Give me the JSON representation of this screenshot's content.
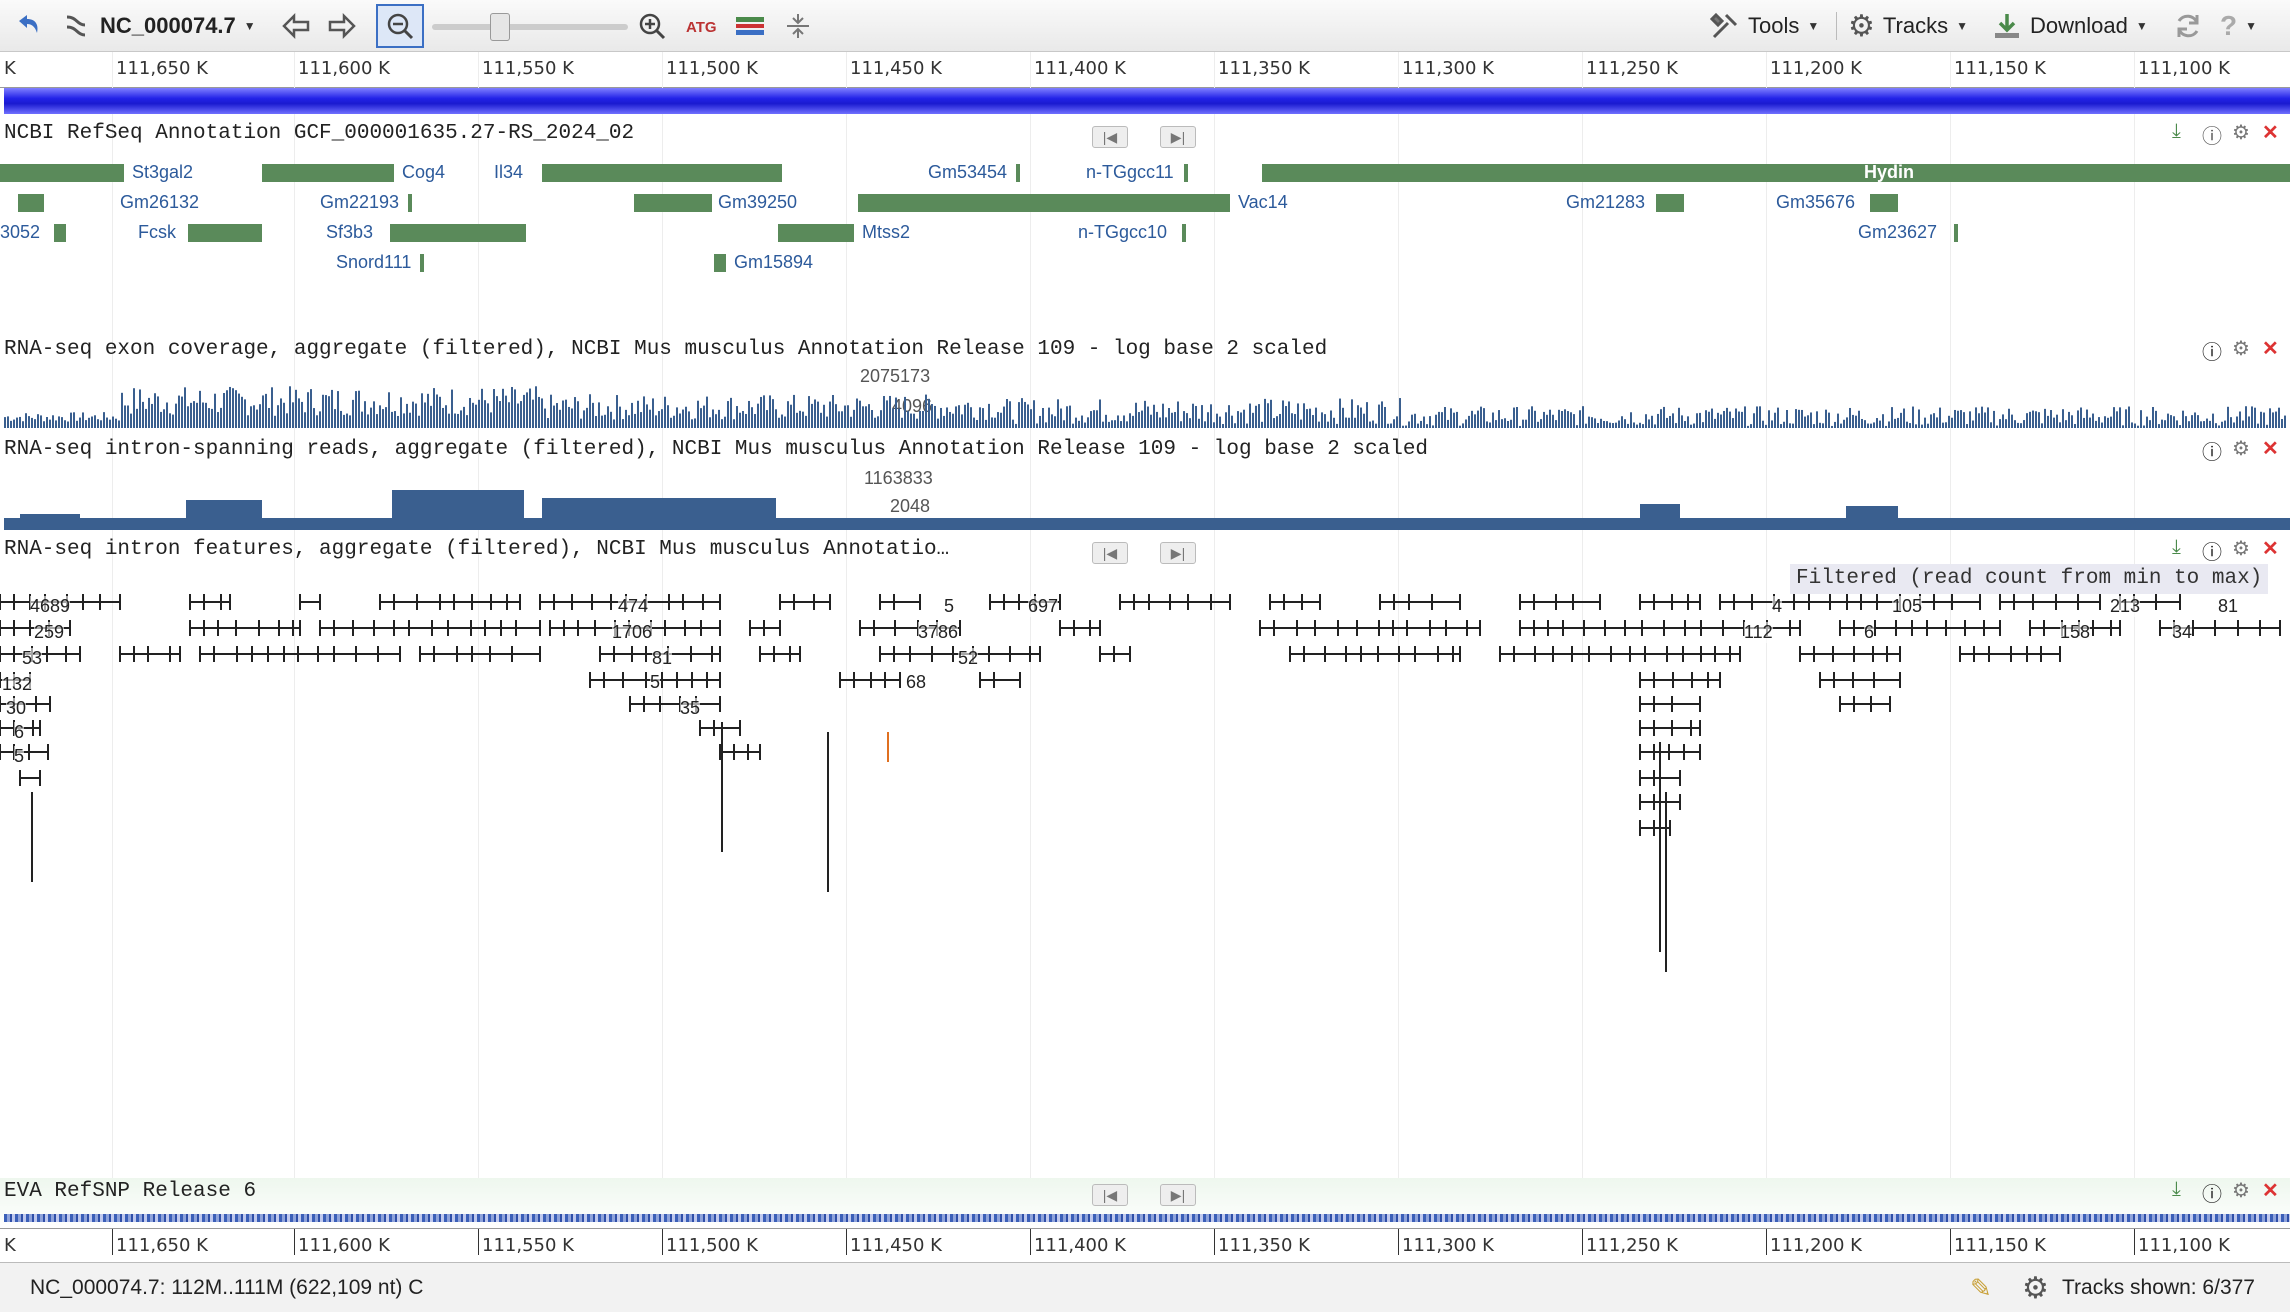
{
  "toolbar": {
    "sequence_label": "NC_000074.7",
    "tools_label": "Tools",
    "tracks_label": "Tracks",
    "download_label": "Download",
    "icons": [
      "undo-icon",
      "sequence-icon",
      "back-arrow-icon",
      "forward-arrow-icon",
      "zoom-out-icon",
      "zoom-slider",
      "zoom-in-icon",
      "atg-icon",
      "tracks-align-icon",
      "collapse-icon",
      "tools-icon",
      "gear-icon",
      "download-icon",
      "refresh-icon",
      "help-icon"
    ]
  },
  "ruler": {
    "ticks": [
      "K",
      "111,650 K",
      "111,600 K",
      "111,550 K",
      "111,500 K",
      "111,450 K",
      "111,400 K",
      "111,350 K",
      "111,300 K",
      "111,250 K",
      "111,200 K",
      "111,150 K",
      "111,100 K"
    ]
  },
  "tracks": {
    "refseq": {
      "title": "NCBI RefSeq Annotation GCF_000001635.27-RS_2024_02",
      "genes": [
        "St3gal2",
        "Cog4",
        "Il34",
        "Gm53454",
        "n-TGgcc11",
        "Hydin",
        "Gm26132",
        "Gm22193",
        "Gm39250",
        "Vac14",
        "Gm21283",
        "Gm35676",
        "3052",
        "Fcsk",
        "Sf3b3",
        "Mtss2",
        "n-TGgcc10",
        "Gm23627",
        "Snord111",
        "Gm15894"
      ]
    },
    "exon": {
      "title": "RNA-seq exon coverage, aggregate (filtered), NCBI Mus musculus Annotation Release 109 - log base 2 scaled",
      "max_value": "2075173",
      "mid_value": "4096"
    },
    "intron_reads": {
      "title": "RNA-seq intron-spanning reads, aggregate (filtered), NCBI Mus musculus Annotation Release 109 - log base 2 scaled",
      "max_value": "1163833",
      "mid_value": "2048"
    },
    "intron_features": {
      "title": "RNA-seq intron features, aggregate (filtered), NCBI Mus musculus Annotatio…",
      "filter_note": "Filtered (read count from min to max)",
      "counts": [
        "4689",
        "259",
        "53",
        "132",
        "30",
        "6",
        "5",
        "474",
        "1706",
        "81",
        "5",
        "35",
        "5",
        "3786",
        "52",
        "68",
        "697",
        "4",
        "105",
        "112",
        "6",
        "158",
        "213",
        "34",
        "81"
      ]
    },
    "snp": {
      "title": "EVA RefSNP Release 6"
    }
  },
  "status": {
    "location": "NC_000074.7: 112M..111M (622,109 nt) C",
    "tracks_shown": "Tracks shown: 6/377"
  },
  "colors": {
    "gene_green": "#5a8a5a",
    "coverage_blue": "#3a5f8f",
    "seq_bar_blue": "#3b3bf0",
    "gene_label_blue": "#2c5a9b"
  }
}
